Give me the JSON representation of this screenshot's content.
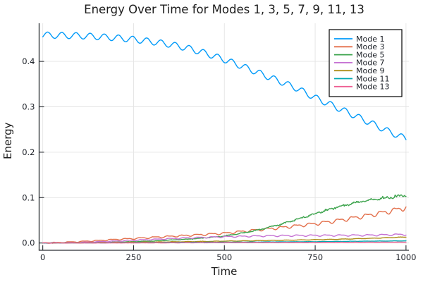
{
  "chart_data": {
    "type": "line",
    "title": "Energy Over Time for Modes 1, 3, 5, 7, 9, 11, 13",
    "xlabel": "Time",
    "ylabel": "Energy",
    "xlim": [
      -10,
      1008
    ],
    "ylim": [
      -0.016,
      0.484
    ],
    "x_ticks": {
      "values": [
        0,
        250,
        500,
        750,
        1000
      ],
      "labels": [
        "0",
        "250",
        "500",
        "750",
        "1000"
      ]
    },
    "y_ticks": {
      "values": [
        0.0,
        0.1,
        0.2,
        0.3,
        0.4
      ],
      "labels": [
        "0.0",
        "0.1",
        "0.2",
        "0.3",
        "0.4"
      ]
    },
    "grid": true,
    "legend_position": "top-right",
    "colors": {
      "grid": "#e4e4e4",
      "spine": "#2a2e33",
      "legend_border": "#000000",
      "legend_bg": "#ffffff"
    },
    "series": [
      {
        "name": "Mode 1",
        "color": "#009AF9",
        "points": [
          [
            0,
            0.458
          ],
          [
            100,
            0.4565
          ],
          [
            150,
            0.4545
          ],
          [
            200,
            0.452
          ],
          [
            250,
            0.4485
          ],
          [
            300,
            0.4435
          ],
          [
            350,
            0.4375
          ],
          [
            400,
            0.429
          ],
          [
            450,
            0.4175
          ],
          [
            500,
            0.404
          ],
          [
            550,
            0.389
          ],
          [
            600,
            0.373
          ],
          [
            650,
            0.357
          ],
          [
            700,
            0.3405
          ],
          [
            750,
            0.32
          ],
          [
            800,
            0.302
          ],
          [
            850,
            0.284
          ],
          [
            900,
            0.2655
          ],
          [
            950,
            0.2465
          ],
          [
            1000,
            0.2295
          ]
        ],
        "osc_abs": 0.0068,
        "osc_rel": 0,
        "osc_h2": 0,
        "osc_period": 39,
        "osc_phase": -0.6,
        "noise_abs": 0,
        "noise_rel": 0
      },
      {
        "name": "Mode 3",
        "color": "#E36F4B",
        "points": [
          [
            0,
            0.0
          ],
          [
            50,
            0.0012
          ],
          [
            100,
            0.003
          ],
          [
            150,
            0.0052
          ],
          [
            200,
            0.0078
          ],
          [
            250,
            0.0098
          ],
          [
            300,
            0.0122
          ],
          [
            350,
            0.0145
          ],
          [
            400,
            0.0168
          ],
          [
            450,
            0.019
          ],
          [
            500,
            0.0215
          ],
          [
            550,
            0.0255
          ],
          [
            600,
            0.0295
          ],
          [
            650,
            0.0335
          ],
          [
            700,
            0.038
          ],
          [
            750,
            0.0425
          ],
          [
            800,
            0.048
          ],
          [
            850,
            0.0545
          ],
          [
            900,
            0.0615
          ],
          [
            950,
            0.069
          ],
          [
            1000,
            0.0785
          ]
        ],
        "osc_abs": 0.0008,
        "osc_rel": 0.05,
        "osc_h2": 0.45,
        "osc_period": 39,
        "osc_phase": 2.2,
        "noise_abs": 0.0002,
        "noise_rel": 0.004
      },
      {
        "name": "Mode 5",
        "color": "#3EA44E",
        "points": [
          [
            0,
            0.0
          ],
          [
            100,
            0.0006
          ],
          [
            200,
            0.0018
          ],
          [
            300,
            0.0042
          ],
          [
            400,
            0.0085
          ],
          [
            450,
            0.0115
          ],
          [
            500,
            0.0155
          ],
          [
            550,
            0.022
          ],
          [
            600,
            0.03
          ],
          [
            650,
            0.04
          ],
          [
            700,
            0.052
          ],
          [
            750,
            0.0645
          ],
          [
            800,
            0.0765
          ],
          [
            850,
            0.087
          ],
          [
            900,
            0.0945
          ],
          [
            950,
            0.1005
          ],
          [
            1000,
            0.1055
          ]
        ],
        "osc_abs": 0.0003,
        "osc_rel": 0.012,
        "osc_h2": 0.3,
        "osc_period": 39,
        "osc_phase": 0.8,
        "noise_abs": 0.0003,
        "noise_rel": 0.03
      },
      {
        "name": "Mode 7",
        "color": "#C571D3",
        "points": [
          [
            0,
            0.0
          ],
          [
            100,
            0.0012
          ],
          [
            200,
            0.0042
          ],
          [
            300,
            0.0078
          ],
          [
            400,
            0.0112
          ],
          [
            500,
            0.0138
          ],
          [
            600,
            0.0155
          ],
          [
            700,
            0.0165
          ],
          [
            800,
            0.0168
          ],
          [
            900,
            0.0172
          ],
          [
            1000,
            0.019
          ]
        ],
        "osc_abs": 0.0004,
        "osc_rel": 0.06,
        "osc_h2": 0.45,
        "osc_period": 39,
        "osc_phase": 1.4,
        "noise_abs": 0.0001,
        "noise_rel": 0
      },
      {
        "name": "Mode 9",
        "color": "#AD8E19",
        "points": [
          [
            0,
            0.0
          ],
          [
            200,
            0.0012
          ],
          [
            400,
            0.003
          ],
          [
            600,
            0.0052
          ],
          [
            800,
            0.008
          ],
          [
            900,
            0.0102
          ],
          [
            1000,
            0.0132
          ]
        ],
        "osc_abs": 0.0004,
        "osc_rel": 0,
        "osc_h2": 0,
        "osc_period": 39,
        "osc_phase": 0.2,
        "noise_abs": 0.0003,
        "noise_rel": 0
      },
      {
        "name": "Mode 11",
        "color": "#00A9B2",
        "points": [
          [
            0,
            0.0
          ],
          [
            250,
            0.0008
          ],
          [
            500,
            0.0018
          ],
          [
            750,
            0.003
          ],
          [
            1000,
            0.0048
          ]
        ],
        "osc_abs": 0.0002,
        "osc_rel": 0,
        "osc_h2": 0,
        "osc_period": 39,
        "osc_phase": 2.9,
        "noise_abs": 0.0002,
        "noise_rel": 0
      },
      {
        "name": "Mode 13",
        "color": "#ED5F92",
        "points": [
          [
            0,
            0.0
          ],
          [
            250,
            0.0003
          ],
          [
            500,
            0.0008
          ],
          [
            750,
            0.0013
          ],
          [
            1000,
            0.0019
          ]
        ],
        "osc_abs": 0.00015,
        "osc_rel": 0,
        "osc_h2": 0,
        "osc_period": 39,
        "osc_phase": 1.1,
        "noise_abs": 0.00015,
        "noise_rel": 0
      }
    ]
  }
}
